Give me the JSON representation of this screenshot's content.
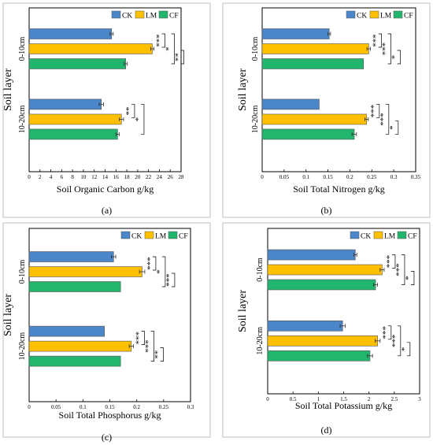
{
  "legend": [
    {
      "name": "CK",
      "color": "#4a86c8"
    },
    {
      "name": "LM",
      "color": "#ffc000"
    },
    {
      "name": "CF",
      "color": "#21b56d"
    }
  ],
  "chart_data": [
    {
      "type": "bar",
      "orientation": "horizontal",
      "panel_label": "(a)",
      "categories": [
        "0-10cm",
        "10-20cm"
      ],
      "series": [
        {
          "name": "CK",
          "values": [
            15.2,
            13.3
          ],
          "errors": [
            0.3,
            0.4
          ]
        },
        {
          "name": "LM",
          "values": [
            22.7,
            17.0
          ],
          "errors": [
            0.3,
            0.4
          ]
        },
        {
          "name": "CF",
          "values": [
            17.8,
            16.3
          ],
          "errors": [
            0.3,
            0.3
          ]
        }
      ],
      "xlabel": "Soil Organic Carbon g/kg",
      "ylabel": "Soil layer",
      "xlim": [
        0,
        28
      ],
      "xticks": [
        "0",
        "2",
        "4",
        "6",
        "8",
        "10",
        "12",
        "14",
        "16",
        "18",
        "20",
        "22",
        "24",
        "26",
        "28"
      ],
      "significance": [
        {
          "category": "0-10cm",
          "pair": [
            "CK",
            "LM"
          ],
          "label": "***"
        },
        {
          "category": "0-10cm",
          "pair": [
            "CK",
            "CF"
          ],
          "label": "*"
        },
        {
          "category": "0-10cm",
          "pair": [
            "LM",
            "CF"
          ],
          "label": "**"
        },
        {
          "category": "10-20cm",
          "pair": [
            "CK",
            "LM"
          ],
          "label": "**"
        },
        {
          "category": "10-20cm",
          "pair": [
            "CK",
            "CF"
          ],
          "label": "*"
        }
      ]
    },
    {
      "type": "bar",
      "orientation": "horizontal",
      "panel_label": "(b)",
      "categories": [
        "0-10cm",
        "10-20cm"
      ],
      "series": [
        {
          "name": "CK",
          "values": [
            0.153,
            0.13
          ],
          "errors": [
            0.003,
            0.0
          ]
        },
        {
          "name": "LM",
          "values": [
            0.243,
            0.238
          ],
          "errors": [
            0.004,
            0.004
          ]
        },
        {
          "name": "CF",
          "values": [
            0.231,
            0.21
          ],
          "errors": [
            0.0,
            0.005
          ]
        }
      ],
      "xlabel": "Soil Total Nitrogen g/kg",
      "ylabel": "Soil layer",
      "xlim": [
        0,
        0.35
      ],
      "xticks": [
        "0",
        "0.05",
        "0.1",
        "0.15",
        "0.2",
        "0.25",
        "0.3",
        "0.35"
      ],
      "significance": [
        {
          "category": "0-10cm",
          "pair": [
            "CK",
            "LM"
          ],
          "label": "***"
        },
        {
          "category": "0-10cm",
          "pair": [
            "CK",
            "CF"
          ],
          "label": "***"
        },
        {
          "category": "0-10cm",
          "pair": [
            "LM",
            "CF"
          ],
          "label": "*"
        },
        {
          "category": "10-20cm",
          "pair": [
            "CK",
            "LM"
          ],
          "label": "***"
        },
        {
          "category": "10-20cm",
          "pair": [
            "CK",
            "CF"
          ],
          "label": "***"
        },
        {
          "category": "10-20cm",
          "pair": [
            "LM",
            "CF"
          ],
          "label": "*"
        }
      ]
    },
    {
      "type": "bar",
      "orientation": "horizontal",
      "panel_label": "(c)",
      "categories": [
        "0-10cm",
        "10-20cm"
      ],
      "series": [
        {
          "name": "CK",
          "values": [
            0.157,
            0.14
          ],
          "errors": [
            0.004,
            0.0
          ]
        },
        {
          "name": "LM",
          "values": [
            0.21,
            0.19
          ],
          "errors": [
            0.005,
            0.004
          ]
        },
        {
          "name": "CF",
          "values": [
            0.17,
            0.17
          ],
          "errors": [
            0.0,
            0.0
          ]
        }
      ],
      "xlabel": "Soil Total Phosphorus g/kg",
      "ylabel": "Soil layer",
      "xlim": [
        0,
        0.3
      ],
      "xticks": [
        "0",
        "0.05",
        "0.1",
        "0.15",
        "0.2",
        "0.25",
        "0.3"
      ],
      "significance": [
        {
          "category": "0-10cm",
          "pair": [
            "CK",
            "LM"
          ],
          "label": "***"
        },
        {
          "category": "0-10cm",
          "pair": [
            "CK",
            "CF"
          ],
          "label": "*"
        },
        {
          "category": "0-10cm",
          "pair": [
            "LM",
            "CF"
          ],
          "label": "***"
        },
        {
          "category": "10-20cm",
          "pair": [
            "CK",
            "LM"
          ],
          "label": "***"
        },
        {
          "category": "10-20cm",
          "pair": [
            "CK",
            "CF"
          ],
          "label": "***"
        },
        {
          "category": "10-20cm",
          "pair": [
            "LM",
            "CF"
          ],
          "label": "**"
        }
      ]
    },
    {
      "type": "bar",
      "orientation": "horizontal",
      "panel_label": "(d)",
      "categories": [
        "0-10cm",
        "10-20cm"
      ],
      "series": [
        {
          "name": "CK",
          "values": [
            1.73,
            1.48
          ],
          "errors": [
            0.03,
            0.05
          ]
        },
        {
          "name": "LM",
          "values": [
            2.26,
            2.17
          ],
          "errors": [
            0.04,
            0.05
          ]
        },
        {
          "name": "CF",
          "values": [
            2.13,
            2.02
          ],
          "errors": [
            0.04,
            0.05
          ]
        }
      ],
      "xlabel": "Soil Total Potassium g/kg",
      "ylabel": "Soil layer",
      "xlim": [
        0,
        3
      ],
      "xticks": [
        "0",
        "0.5",
        "1",
        "1.5",
        "2",
        "2.5",
        "3"
      ],
      "significance": [
        {
          "category": "0-10cm",
          "pair": [
            "CK",
            "LM"
          ],
          "label": "***"
        },
        {
          "category": "0-10cm",
          "pair": [
            "CK",
            "CF"
          ],
          "label": "***"
        },
        {
          "category": "0-10cm",
          "pair": [
            "LM",
            "CF"
          ],
          "label": "*"
        },
        {
          "category": "10-20cm",
          "pair": [
            "CK",
            "LM"
          ],
          "label": "***"
        },
        {
          "category": "10-20cm",
          "pair": [
            "CK",
            "CF"
          ],
          "label": "***"
        },
        {
          "category": "10-20cm",
          "pair": [
            "LM",
            "CF"
          ],
          "label": "*"
        }
      ]
    }
  ]
}
